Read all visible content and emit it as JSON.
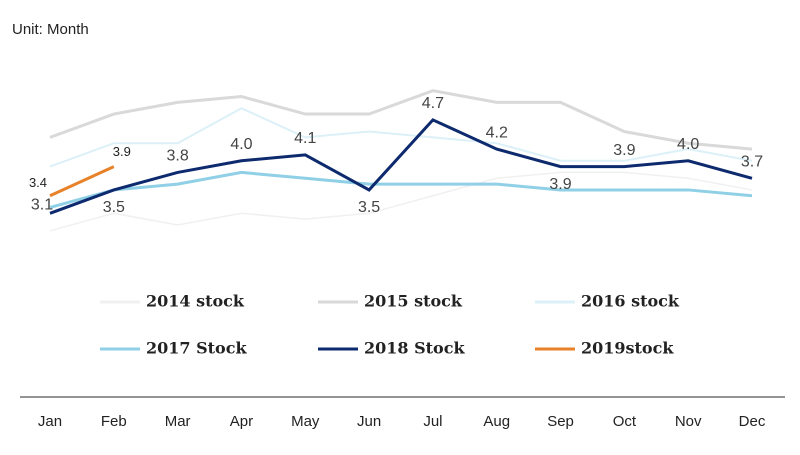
{
  "chart_data": {
    "type": "line",
    "subtitle": "Unit: Month",
    "categories": [
      "Jan",
      "Feb",
      "Mar",
      "Apr",
      "May",
      "Jun",
      "Jul",
      "Aug",
      "Sep",
      "Oct",
      "Nov",
      "Dec"
    ],
    "ylim": [
      2,
      6
    ],
    "series": [
      {
        "name": "2014 stock",
        "color": "#f0f0f0",
        "values": [
          2.8,
          3.1,
          2.9,
          3.1,
          3.0,
          3.1,
          3.4,
          3.7,
          3.8,
          3.8,
          3.7,
          3.5
        ]
      },
      {
        "name": "2015 stock",
        "color": "#d9d9d9",
        "values": [
          4.4,
          4.8,
          5.0,
          5.1,
          4.8,
          4.8,
          5.2,
          5.0,
          5.0,
          4.5,
          4.3,
          4.2
        ]
      },
      {
        "name": "2016 stock",
        "color": "#dcf0f8",
        "values": [
          3.9,
          4.3,
          4.3,
          4.9,
          4.4,
          4.5,
          4.4,
          4.3,
          4.0,
          4.0,
          4.2,
          4.0
        ]
      },
      {
        "name": "2017 Stock",
        "color": "#8fd0e6",
        "values": [
          3.2,
          3.5,
          3.6,
          3.8,
          3.7,
          3.6,
          3.6,
          3.6,
          3.5,
          3.5,
          3.5,
          3.4
        ]
      },
      {
        "name": "2018 Stock",
        "color": "#0e2a6e",
        "values": [
          3.1,
          3.5,
          3.8,
          4.0,
          4.1,
          3.5,
          4.7,
          4.2,
          3.9,
          3.9,
          4.0,
          3.7
        ],
        "value_labels": [
          "3.1",
          "3.5",
          "3.8",
          "4.0",
          "4.1",
          "3.5",
          "4.7",
          "4.2",
          "3.9",
          "3.9",
          "4.0",
          "3.7"
        ]
      },
      {
        "name": "2019stock",
        "color": "#e8822a",
        "values": [
          3.4,
          3.9,
          null,
          null,
          null,
          null,
          null,
          null,
          null,
          null,
          null,
          null
        ],
        "value_labels": [
          "3.4",
          "3.9",
          null,
          null,
          null,
          null,
          null,
          null,
          null,
          null,
          null,
          null
        ]
      }
    ]
  }
}
